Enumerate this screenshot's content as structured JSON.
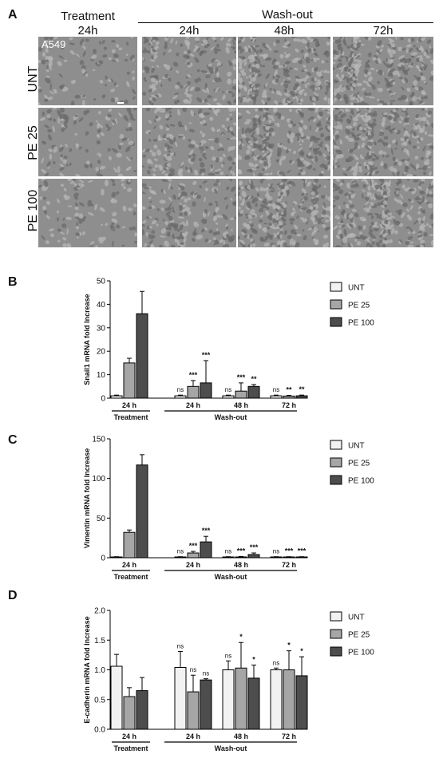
{
  "panels": {
    "a": "A",
    "b": "B",
    "c": "C",
    "d": "D"
  },
  "micrographs": {
    "group_treatment": "Treatment",
    "group_washout": "Wash-out",
    "col_treatment": "24h",
    "cols_washout": [
      "24h",
      "48h",
      "72h"
    ],
    "rows": [
      "UNT",
      "PE 25",
      "PE 100"
    ],
    "cell_line": "A549",
    "density": [
      [
        0.25,
        0.55,
        0.85,
        0.95
      ],
      [
        0.3,
        0.55,
        0.8,
        0.95
      ],
      [
        0.25,
        0.55,
        0.9,
        0.95
      ]
    ]
  },
  "legend": [
    "UNT",
    "PE 25",
    "PE 100"
  ],
  "colors": {
    "UNT": "#f2f2f2",
    "PE 25": "#a6a6a6",
    "PE 100": "#4d4d4d",
    "micrograph": "#8e8e8e"
  },
  "chart_data": [
    {
      "type": "bar",
      "ylabel": "Snail1 mRNA fold Increase",
      "ylim": [
        0,
        50
      ],
      "yticks": [
        0,
        10,
        20,
        30,
        40,
        50
      ],
      "categories": [
        "24 h",
        "24 h",
        "48 h",
        "72 h"
      ],
      "groups": [
        {
          "label": "Treatment",
          "span": [
            0,
            0
          ]
        },
        {
          "label": "Wash-out",
          "span": [
            1,
            3
          ]
        }
      ],
      "series": [
        {
          "name": "UNT",
          "values": [
            1.0,
            1.0,
            1.0,
            1.0
          ],
          "errors": [
            0.3,
            0.3,
            0.3,
            0.3
          ]
        },
        {
          "name": "PE 25",
          "values": [
            15,
            5,
            3,
            0.9
          ],
          "errors": [
            2,
            2.5,
            3.5,
            0.3
          ]
        },
        {
          "name": "PE 100",
          "values": [
            36,
            6.5,
            5,
            1.0
          ],
          "errors": [
            9.5,
            9.5,
            0.8,
            0.3
          ]
        }
      ],
      "annotations": [
        [
          null,
          null,
          null
        ],
        [
          "ns",
          "***",
          "***"
        ],
        [
          "ns",
          "***",
          "**"
        ],
        [
          "ns",
          "**",
          "**"
        ]
      ]
    },
    {
      "type": "bar",
      "ylabel": "Vimentin mRNA fold Increase",
      "ylim": [
        0,
        150
      ],
      "yticks": [
        0,
        50,
        100,
        150
      ],
      "categories": [
        "24 h",
        "24 h",
        "48 h",
        "72 h"
      ],
      "groups": [
        {
          "label": "Treatment",
          "span": [
            0,
            0
          ]
        },
        {
          "label": "Wash-out",
          "span": [
            1,
            3
          ]
        }
      ],
      "series": [
        {
          "name": "UNT",
          "values": [
            1,
            1,
            1,
            1
          ],
          "errors": [
            0.3,
            0.3,
            0.3,
            0.3
          ]
        },
        {
          "name": "PE 25",
          "values": [
            32,
            6,
            1,
            1
          ],
          "errors": [
            3,
            2,
            0.5,
            0.3
          ]
        },
        {
          "name": "PE 100",
          "values": [
            117,
            20,
            4,
            1
          ],
          "errors": [
            13,
            7,
            2,
            0.3
          ]
        }
      ],
      "annotations": [
        [
          null,
          null,
          null
        ],
        [
          "ns",
          "***",
          "***"
        ],
        [
          "ns",
          "***",
          "***"
        ],
        [
          "ns",
          "***",
          "***"
        ]
      ]
    },
    {
      "type": "bar",
      "ylabel": "E-cadherin mRNA fold Increase",
      "ylim": [
        0,
        2.0
      ],
      "yticks": [
        0.0,
        0.5,
        1.0,
        1.5,
        2.0
      ],
      "categories": [
        "24 h",
        "24 h",
        "48 h",
        "72 h"
      ],
      "groups": [
        {
          "label": "Treatment",
          "span": [
            0,
            0
          ]
        },
        {
          "label": "Wash-out",
          "span": [
            1,
            3
          ]
        }
      ],
      "series": [
        {
          "name": "UNT",
          "values": [
            1.06,
            1.04,
            1.0,
            1.0
          ],
          "errors": [
            0.2,
            0.27,
            0.15,
            0.03
          ]
        },
        {
          "name": "PE 25",
          "values": [
            0.55,
            0.63,
            1.03,
            1.0
          ],
          "errors": [
            0.15,
            0.28,
            0.43,
            0.32
          ]
        },
        {
          "name": "PE 100",
          "values": [
            0.65,
            0.83,
            0.86,
            0.9
          ],
          "errors": [
            0.22,
            0.02,
            0.22,
            0.32
          ]
        }
      ],
      "annotations": [
        [
          null,
          null,
          null
        ],
        [
          "ns",
          "ns",
          "ns"
        ],
        [
          "ns",
          "*",
          "*"
        ],
        [
          "ns",
          "*",
          "*"
        ]
      ]
    }
  ]
}
